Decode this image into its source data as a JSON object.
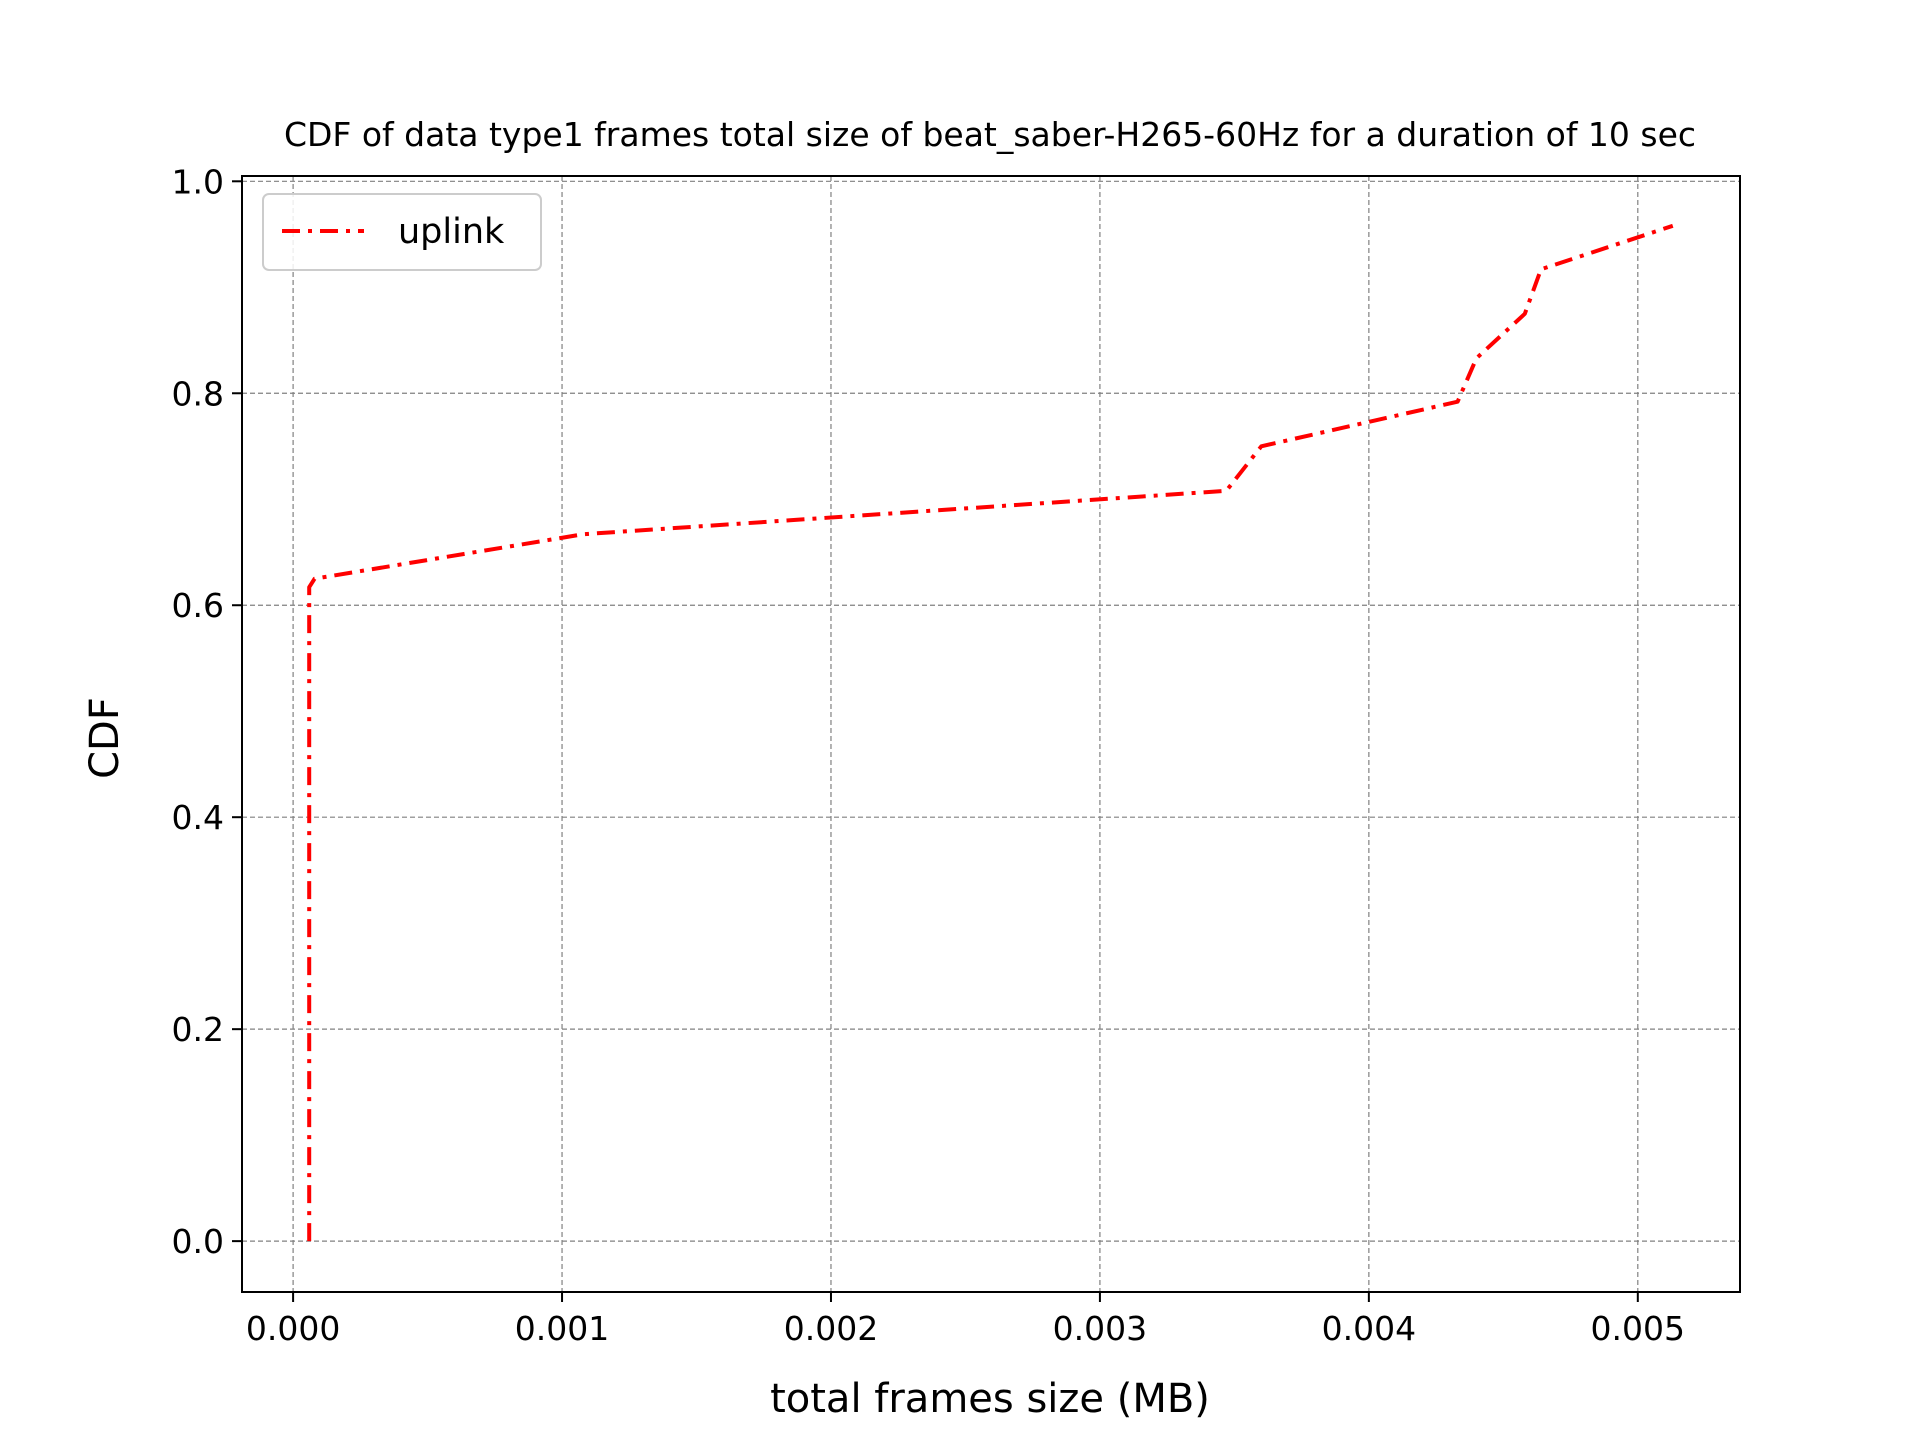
{
  "chart_data": {
    "type": "line",
    "title": "CDF of data type1 frames total size of beat_saber-H265-60Hz for a duration of 10 sec",
    "xlabel": "total frames size (MB)",
    "ylabel": "CDF",
    "xlim": [
      -0.00019,
      0.00538
    ],
    "ylim": [
      -0.048,
      1.005
    ],
    "xticks": [
      0.0,
      0.001,
      0.002,
      0.003,
      0.004,
      0.005
    ],
    "xtick_labels": [
      "0.000",
      "0.001",
      "0.002",
      "0.003",
      "0.004",
      "0.005"
    ],
    "yticks": [
      0.0,
      0.2,
      0.4,
      0.6,
      0.8,
      1.0
    ],
    "ytick_labels": [
      "0.0",
      "0.2",
      "0.4",
      "0.6",
      "0.8",
      "1.0"
    ],
    "grid": true,
    "legend_position": "top-left",
    "series": [
      {
        "name": "uplink",
        "color": "#ff0000",
        "line_style": "dash-dot",
        "x": [
          6e-05,
          6e-05,
          8e-05,
          0.00108,
          0.00347,
          0.0036,
          0.00433,
          0.0044,
          0.00458,
          0.00464,
          0.00513
        ],
        "y": [
          0.0,
          0.617,
          0.625,
          0.667,
          0.708,
          0.75,
          0.792,
          0.833,
          0.875,
          0.917,
          0.958
        ]
      }
    ]
  }
}
